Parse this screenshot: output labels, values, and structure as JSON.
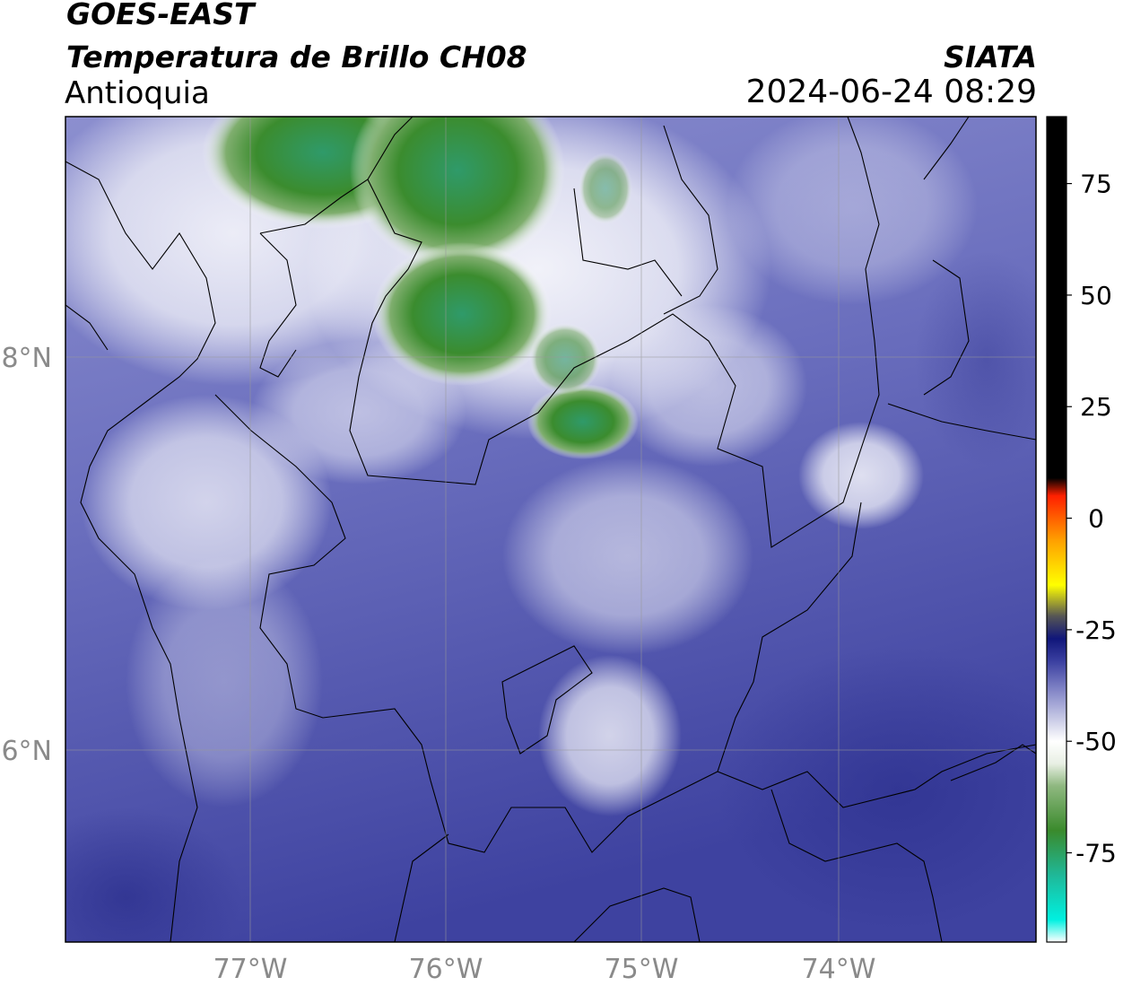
{
  "header": {
    "satellite": "GOES-EAST",
    "product": "Temperatura de Brillo CH08",
    "region": "Antioquia",
    "institution": "SIATA",
    "datetime": "2024-06-24 08:29"
  },
  "map": {
    "lat_labels": [
      "8°N",
      "6°N"
    ],
    "lon_labels": [
      "77°W",
      "76°W",
      "75°W",
      "74°W"
    ],
    "gridline_color": "#999999",
    "label_color": "#8a8a8a"
  },
  "colorbar": {
    "tick_labels": [
      "75",
      "50",
      "25",
      "0",
      "-25",
      "-50",
      "-75"
    ],
    "tick_values": [
      75,
      50,
      25,
      0,
      -25,
      -50,
      -75
    ],
    "range": [
      -95,
      90
    ],
    "stops": [
      {
        "value": -95,
        "color": "#ffffff"
      },
      {
        "value": -90,
        "color": "#00f0e0"
      },
      {
        "value": -80,
        "color": "#1fb898"
      },
      {
        "value": -70,
        "color": "#3a8a2c"
      },
      {
        "value": -60,
        "color": "#8fb880"
      },
      {
        "value": -55,
        "color": "#e8efe4"
      },
      {
        "value": -50,
        "color": "#ffffff"
      },
      {
        "value": -45,
        "color": "#c8cae6"
      },
      {
        "value": -38,
        "color": "#7d80c4"
      },
      {
        "value": -32,
        "color": "#3a3fa0"
      },
      {
        "value": -27,
        "color": "#10167a"
      },
      {
        "value": -22,
        "color": "#555555"
      },
      {
        "value": -15,
        "color": "#ffff00"
      },
      {
        "value": -5,
        "color": "#ffa000"
      },
      {
        "value": 5,
        "color": "#ff2000"
      },
      {
        "value": 9,
        "color": "#000000"
      },
      {
        "value": 90,
        "color": "#000000"
      }
    ]
  }
}
